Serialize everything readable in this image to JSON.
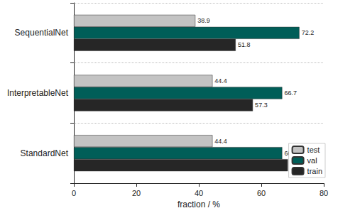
{
  "chart_data": {
    "type": "bar",
    "orientation": "horizontal",
    "categories": [
      "SequentialNet",
      "InterpretableNet",
      "StandardNet"
    ],
    "series": [
      {
        "name": "test",
        "color": "#c3c3c3",
        "values": [
          38.9,
          44.4,
          44.4
        ]
      },
      {
        "name": "val",
        "color": "#005e58",
        "values": [
          72.2,
          66.7,
          66.7
        ]
      },
      {
        "name": "train",
        "color": "#262626",
        "values": [
          51.8,
          57.3,
          68.5
        ]
      }
    ],
    "xlabel": "fraction / %",
    "xlim": [
      0,
      80
    ],
    "xticks": [
      0,
      20,
      40,
      60,
      80
    ],
    "data_labels": true,
    "legend": "lower right",
    "grid": false
  }
}
